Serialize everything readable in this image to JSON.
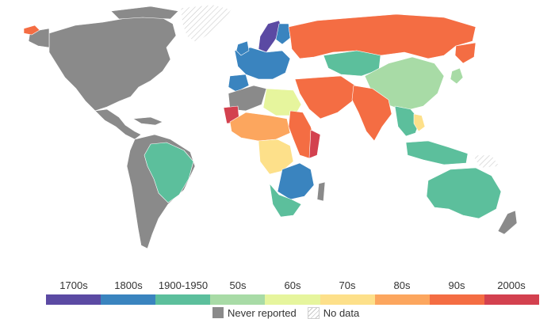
{
  "legend": {
    "categories": [
      {
        "label": "1700s",
        "color": "#5b4aa3"
      },
      {
        "label": "1800s",
        "color": "#3a84bf"
      },
      {
        "label": "1900-1950",
        "color": "#5cbf9c"
      },
      {
        "label": "50s",
        "color": "#a8dba6"
      },
      {
        "label": "60s",
        "color": "#e6f59d"
      },
      {
        "label": "70s",
        "color": "#fde08a"
      },
      {
        "label": "80s",
        "color": "#fca65e"
      },
      {
        "label": "90s",
        "color": "#f46d43"
      },
      {
        "label": "2000s",
        "color": "#d3414f"
      }
    ],
    "never_reported": {
      "label": "Never reported",
      "color": "#8a8a8a"
    },
    "no_data": {
      "label": "No data"
    }
  },
  "regions": [
    {
      "name": "north-america",
      "category": "never"
    },
    {
      "name": "greenland",
      "category": "no_data"
    },
    {
      "name": "central-america",
      "category": "never"
    },
    {
      "name": "south-america",
      "category": "never"
    },
    {
      "name": "brazil",
      "category": "1900-1950"
    },
    {
      "name": "scandinavia",
      "category": "1700s"
    },
    {
      "name": "finland",
      "category": "1800s"
    },
    {
      "name": "iceland",
      "category": "90s"
    },
    {
      "name": "western-europe",
      "category": "1800s"
    },
    {
      "name": "iberia",
      "category": "1800s"
    },
    {
      "name": "russia",
      "category": "90s"
    },
    {
      "name": "kazakhstan",
      "category": "1900-1950"
    },
    {
      "name": "china",
      "category": "50s"
    },
    {
      "name": "middle-east",
      "category": "90s"
    },
    {
      "name": "india",
      "category": "90s"
    },
    {
      "name": "southeast-asia",
      "category": "1900-1950"
    },
    {
      "name": "indonesia",
      "category": "1900-1950"
    },
    {
      "name": "australia",
      "category": "1900-1950"
    },
    {
      "name": "north-africa",
      "category": "never"
    },
    {
      "name": "west-africa",
      "category": "80s"
    },
    {
      "name": "egypt-libya",
      "category": "60s"
    },
    {
      "name": "central-africa",
      "category": "70s"
    },
    {
      "name": "southern-africa",
      "category": "1800s"
    },
    {
      "name": "south-africa",
      "category": "1900-1950"
    },
    {
      "name": "mauritania",
      "category": "2000s"
    },
    {
      "name": "somalia",
      "category": "2000s"
    }
  ]
}
